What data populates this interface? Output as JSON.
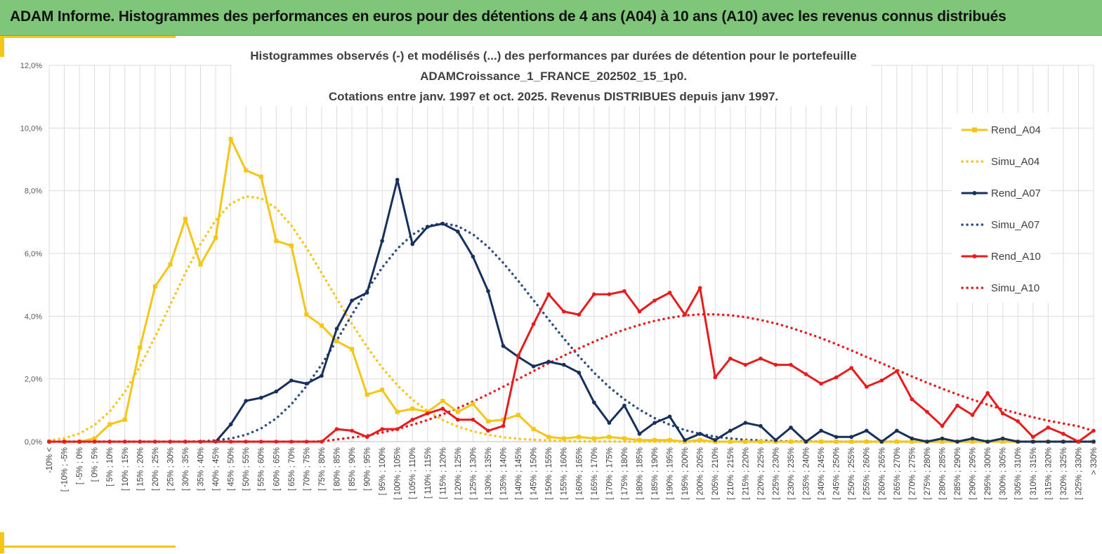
{
  "header": {
    "title": "ADAM Informe. Histogrammes des performances en euros pour des détentions de 4 ans (A04) à 10 ans (A10) avec les revenus connus distribués",
    "background": "#7fc57a"
  },
  "chart_data": {
    "type": "line",
    "title_lines": [
      "Histogrammes observés (-) et modélisés (...) des performances par durées de détention pour le portefeuille",
      "ADAMCroissance_1_FRANCE_202502_15_1p0.",
      "Cotations entre janv. 1997 et oct. 2025. Revenus DISTRIBUES depuis janv 1997."
    ],
    "ylim": [
      0,
      12
    ],
    "yticks": [
      "0,0%",
      "2,0%",
      "4,0%",
      "6,0%",
      "8,0%",
      "10,0%",
      "12,0%"
    ],
    "grid": true,
    "legend_position": "right",
    "categories": [
      "-10% <",
      "[ -10% ; -5%",
      "[ -5% ; 0%",
      "[ 0% ; 5%",
      "[ 5% ; 10%",
      "[ 10% ; 15%",
      "[ 15% ; 20%",
      "[ 20% ; 25%",
      "[ 25% ; 30%",
      "[ 30% ; 35%",
      "[ 35% ; 40%",
      "[ 40% ; 45%",
      "[ 45% ; 50%",
      "[ 50% ; 55%",
      "[ 55% ; 60%",
      "[ 60% ; 65%",
      "[ 65% ; 70%",
      "[ 70% ; 75%",
      "[ 75% ; 80%",
      "[ 80% ; 85%",
      "[ 85% ; 90%",
      "[ 90% ; 95%",
      "[ 95% ; 100%",
      "[ 100% ; 105%",
      "[ 105% ; 110%",
      "[ 110% ; 115%",
      "[ 115% ; 120%",
      "[ 120% ; 125%",
      "[ 125% ; 130%",
      "[ 130% ; 135%",
      "[ 135% ; 140%",
      "[ 140% ; 145%",
      "[ 145% ; 150%",
      "[ 150% ; 155%",
      "[ 155% ; 160%",
      "[ 160% ; 165%",
      "[ 165% ; 170%",
      "[ 170% ; 175%",
      "[ 175% ; 180%",
      "[ 180% ; 185%",
      "[ 185% ; 190%",
      "[ 190% ; 195%",
      "[ 195% ; 200%",
      "[ 200% ; 205%",
      "[ 205% ; 210%",
      "[ 210% ; 215%",
      "[ 215% ; 220%",
      "[ 220% ; 225%",
      "[ 225% ; 230%",
      "[ 230% ; 235%",
      "[ 235% ; 240%",
      "[ 240% ; 245%",
      "[ 245% ; 250%",
      "[ 250% ; 255%",
      "[ 255% ; 260%",
      "[ 260% ; 265%",
      "[ 265% ; 270%",
      "[ 270% ; 275%",
      "[ 275% ; 280%",
      "[ 280% ; 285%",
      "[ 285% ; 290%",
      "[ 290% ; 295%",
      "[ 295% ; 300%",
      "[ 300% ; 305%",
      "[ 305% ; 310%",
      "[ 310% ; 315%",
      "[ 315% ; 320%",
      "[ 320% ; 325%",
      "[ 325% ; 330%",
      "> 330%"
    ],
    "series": [
      {
        "name": "Rend_A04",
        "style": "solid",
        "marker": "square",
        "color": "#f5c518",
        "values": [
          0,
          0,
          0,
          0.1,
          0.55,
          0.7,
          3.0,
          4.95,
          5.65,
          7.1,
          5.65,
          6.5,
          9.65,
          8.65,
          8.45,
          6.4,
          6.25,
          4.05,
          3.7,
          3.2,
          2.95,
          1.5,
          1.65,
          0.95,
          1.05,
          0.95,
          1.3,
          0.95,
          1.2,
          0.65,
          0.7,
          0.85,
          0.4,
          0.15,
          0.1,
          0.15,
          0.1,
          0.15,
          0.1,
          0.05,
          0.05,
          0.05,
          0,
          0.05,
          0,
          0,
          0,
          0,
          0,
          0,
          0,
          0,
          0,
          0,
          0,
          0,
          0,
          0,
          0,
          0,
          0,
          0,
          0,
          0,
          0,
          0,
          0,
          0,
          0,
          0
        ]
      },
      {
        "name": "Simu_A04",
        "style": "dotted",
        "marker": "none",
        "color": "#f5c518",
        "values": [
          0.04,
          0.11,
          0.26,
          0.53,
          0.96,
          1.59,
          2.4,
          3.34,
          4.36,
          5.38,
          6.3,
          7.06,
          7.59,
          7.82,
          7.76,
          7.44,
          6.89,
          6.18,
          5.38,
          4.56,
          3.76,
          3.02,
          2.36,
          1.8,
          1.34,
          0.97,
          0.69,
          0.48,
          0.33,
          0.22,
          0.14,
          0.09,
          0.06,
          0.04,
          0.02,
          0.01,
          0.01,
          0.01,
          0,
          0,
          0,
          0,
          0,
          0,
          0,
          0,
          0,
          0,
          0,
          0,
          0,
          0,
          0,
          0,
          0,
          0,
          0,
          0,
          0,
          0,
          0,
          0,
          0,
          0,
          0,
          0,
          0,
          0,
          0,
          0
        ]
      },
      {
        "name": "Rend_A07",
        "style": "solid",
        "marker": "circle",
        "color": "#17305e",
        "values": [
          0,
          0,
          0,
          0,
          0,
          0,
          0,
          0,
          0,
          0,
          0,
          0,
          0.55,
          1.3,
          1.4,
          1.6,
          1.95,
          1.85,
          2.1,
          3.6,
          4.5,
          4.75,
          6.4,
          8.35,
          6.3,
          6.85,
          6.95,
          6.7,
          5.9,
          4.8,
          3.05,
          2.7,
          2.4,
          2.55,
          2.45,
          2.2,
          1.25,
          0.6,
          1.15,
          0.25,
          0.6,
          0.8,
          0.05,
          0.25,
          0.05,
          0.35,
          0.6,
          0.5,
          0.05,
          0.45,
          0,
          0.35,
          0.15,
          0.15,
          0.35,
          0,
          0.35,
          0.1,
          0,
          0.1,
          0,
          0.1,
          0,
          0.1,
          0,
          0,
          0,
          0,
          0,
          0
        ]
      },
      {
        "name": "Simu_A07",
        "style": "dotted",
        "marker": "none",
        "color": "#2d4f80",
        "values": [
          0,
          0,
          0,
          0,
          0,
          0,
          0,
          0,
          0,
          0,
          0.01,
          0.04,
          0.1,
          0.22,
          0.42,
          0.74,
          1.19,
          1.77,
          2.46,
          3.23,
          4.04,
          4.83,
          5.55,
          6.15,
          6.6,
          6.88,
          6.97,
          6.87,
          6.61,
          6.21,
          5.7,
          5.12,
          4.51,
          3.89,
          3.29,
          2.72,
          2.2,
          1.74,
          1.35,
          1.02,
          0.75,
          0.54,
          0.37,
          0.25,
          0.16,
          0.1,
          0.06,
          0.04,
          0.02,
          0.01,
          0.01,
          0,
          0,
          0,
          0,
          0,
          0,
          0,
          0,
          0,
          0,
          0,
          0,
          0,
          0,
          0,
          0,
          0,
          0,
          0
        ]
      },
      {
        "name": "Rend_A10",
        "style": "solid",
        "marker": "circle",
        "color": "#e81c1c",
        "values": [
          0,
          0,
          0,
          0,
          0,
          0,
          0,
          0,
          0,
          0,
          0,
          0,
          0,
          0,
          0,
          0,
          0,
          0,
          0,
          0.4,
          0.35,
          0.15,
          0.4,
          0.4,
          0.7,
          0.9,
          1.05,
          0.7,
          0.7,
          0.35,
          0.5,
          2.75,
          3.75,
          4.7,
          4.15,
          4.05,
          4.7,
          4.7,
          4.8,
          4.15,
          4.5,
          4.75,
          4.05,
          4.9,
          2.05,
          2.65,
          2.45,
          2.65,
          2.45,
          2.45,
          2.15,
          1.85,
          2.05,
          2.35,
          1.75,
          1.95,
          2.25,
          1.35,
          0.95,
          0.5,
          1.15,
          0.85,
          1.55,
          0.9,
          0.65,
          0.15,
          0.45,
          0.25,
          0,
          0.35
        ]
      },
      {
        "name": "Simu_A10",
        "style": "dotted",
        "marker": "none",
        "color": "#e81c1c",
        "values": [
          0,
          0,
          0,
          0,
          0,
          0,
          0,
          0,
          0,
          0,
          0,
          0,
          0,
          0,
          0,
          0,
          0,
          0,
          0.01,
          0.07,
          0.13,
          0.2,
          0.29,
          0.4,
          0.54,
          0.69,
          0.87,
          1.07,
          1.28,
          1.51,
          1.75,
          2.0,
          2.25,
          2.5,
          2.74,
          2.97,
          3.19,
          3.39,
          3.57,
          3.72,
          3.85,
          3.95,
          4.02,
          4.06,
          4.06,
          4.03,
          3.97,
          3.88,
          3.77,
          3.63,
          3.47,
          3.3,
          3.11,
          2.91,
          2.7,
          2.5,
          2.29,
          2.08,
          1.88,
          1.69,
          1.51,
          1.34,
          1.18,
          1.03,
          0.9,
          0.78,
          0.67,
          0.58,
          0.49,
          0.34
        ]
      }
    ]
  }
}
